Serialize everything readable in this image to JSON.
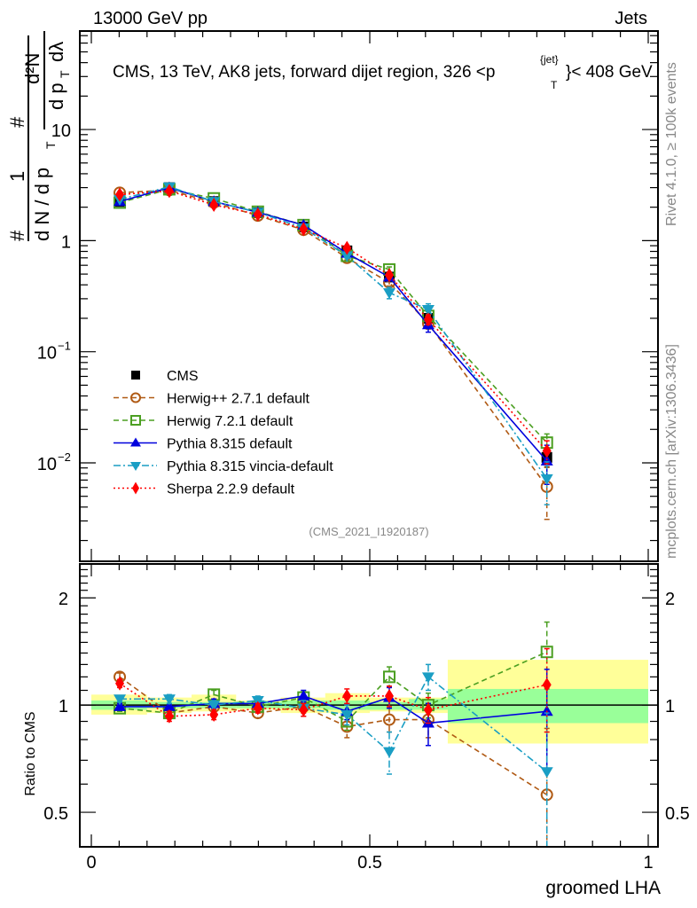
{
  "header": {
    "left_label": "13000 GeV pp",
    "right_label": "Jets"
  },
  "side_labels": {
    "rivet": "Rivet 4.1.0, ≥ 100k events",
    "mcplots": "mcplots.cern.ch [arXiv:1306.3436]"
  },
  "chart_data": [
    {
      "type": "line",
      "panel": "main",
      "title": "CMS, 13 TeV, AK8 jets, forward dijet region, 326 <p_T^{jet}< 408 GeV",
      "title_parts": {
        "prefix": "CMS, 13 TeV, AK8 jets, forward dijet region, 326 <p",
        "sub": "T",
        "sup": "{jet}",
        "suffix": "}< 408 GeV"
      },
      "ylabel": "1/(dN/dp_T) d²N/(dp_T dλ)",
      "ylabel_parts": {
        "num_top": "1",
        "den_left": "d N / d p",
        "den_sub": "T",
        "num_right": "d²N",
        "den_right": "d p",
        "den_right_sub": "T",
        "den_right_end": "dλ",
        "hash": "#"
      },
      "xlabel": "groomed LHA",
      "yscale": "log",
      "ylim": [
        0.0013,
        77
      ],
      "xlim": [
        0,
        1
      ],
      "y_tick_labels": [
        {
          "value": 10,
          "label": "10"
        },
        {
          "value": 1,
          "label": "1"
        },
        {
          "value": 0.1,
          "label": "10",
          "exp": "−1"
        },
        {
          "value": 0.01,
          "label": "10",
          "exp": "−2"
        }
      ],
      "watermark": "(CMS_2021_I1920187)",
      "legend_position": "lower-left",
      "x": [
        0.051,
        0.14,
        0.22,
        0.299,
        0.381,
        0.459,
        0.535,
        0.605,
        0.818
      ],
      "bin_edges": [
        0.0,
        0.1,
        0.18,
        0.26,
        0.34,
        0.42,
        0.5,
        0.57,
        0.64,
        1.0
      ],
      "series": [
        {
          "name": "CMS",
          "color": "#000000",
          "marker": "square",
          "line": "none",
          "values": [
            2.25,
            3.0,
            2.25,
            1.78,
            1.33,
            0.81,
            0.47,
            0.2,
            0.0112
          ],
          "errors": [
            0.08,
            0.08,
            0.06,
            0.05,
            0.05,
            0.04,
            0.03,
            0.02,
            0.002
          ]
        },
        {
          "name": "Herwig++ 2.7.1 default",
          "color": "#b05a14",
          "marker": "circle-open",
          "line": "dashed",
          "values": [
            2.7,
            2.85,
            2.2,
            1.68,
            1.25,
            0.7,
            0.42,
            0.18,
            0.0061
          ],
          "errors": [
            0.05,
            0.05,
            0.05,
            0.04,
            0.03,
            0.03,
            0.03,
            0.02,
            0.003
          ]
        },
        {
          "name": "Herwig 7.2.1 default",
          "color": "#4b9f21",
          "marker": "square-open",
          "line": "dashed",
          "values": [
            2.2,
            2.9,
            2.4,
            1.82,
            1.38,
            0.73,
            0.55,
            0.21,
            0.0152
          ],
          "errors": [
            0.05,
            0.05,
            0.05,
            0.04,
            0.03,
            0.03,
            0.03,
            0.02,
            0.003
          ]
        },
        {
          "name": "Pythia 8.315 default",
          "color": "#0000dd",
          "marker": "triangle-up",
          "line": "solid",
          "values": [
            2.25,
            3.0,
            2.25,
            1.8,
            1.38,
            0.77,
            0.47,
            0.175,
            0.0104
          ],
          "errors": [
            0.05,
            0.05,
            0.05,
            0.04,
            0.04,
            0.03,
            0.03,
            0.025,
            0.004
          ]
        },
        {
          "name": "Pythia 8.315 vincia-default",
          "color": "#1a9ec4",
          "marker": "triangle-down",
          "line": "dashdot",
          "values": [
            2.35,
            3.05,
            2.25,
            1.8,
            1.3,
            0.73,
            0.34,
            0.24,
            0.0072
          ],
          "errors": [
            0.05,
            0.05,
            0.05,
            0.04,
            0.03,
            0.03,
            0.04,
            0.03,
            0.003
          ]
        },
        {
          "name": "Sherpa 2.2.9 default",
          "color": "#ff0000",
          "marker": "diamond",
          "line": "dotted",
          "values": [
            2.6,
            2.8,
            2.1,
            1.72,
            1.27,
            0.86,
            0.49,
            0.195,
            0.0128
          ],
          "errors": [
            0.05,
            0.05,
            0.05,
            0.04,
            0.03,
            0.03,
            0.03,
            0.02,
            0.003
          ]
        }
      ]
    },
    {
      "type": "line",
      "panel": "ratio",
      "ylabel": "Ratio to CMS",
      "xlabel": "groomed LHA",
      "yscale": "log",
      "ylim": [
        0.4,
        2.49
      ],
      "xlim": [
        0,
        1
      ],
      "y_tick_labels": [
        {
          "value": 2,
          "label": "2"
        },
        {
          "value": 1,
          "label": "1"
        },
        {
          "value": 0.5,
          "label": "0.5"
        }
      ],
      "x_tick_labels": [
        {
          "value": 0,
          "label": "0"
        },
        {
          "value": 0.5,
          "label": "0.5"
        },
        {
          "value": 1,
          "label": "1"
        }
      ],
      "x": [
        0.051,
        0.14,
        0.22,
        0.299,
        0.381,
        0.459,
        0.535,
        0.605,
        0.818
      ],
      "bin_edges": [
        0.0,
        0.1,
        0.18,
        0.26,
        0.34,
        0.42,
        0.5,
        0.57,
        0.64,
        1.0
      ],
      "bands": {
        "stat_color": "#99ff99",
        "total_color": "#ffff99",
        "stat": [
          [
            0.97,
            1.03
          ],
          [
            0.98,
            1.02
          ],
          [
            0.98,
            1.02
          ],
          [
            0.98,
            1.02
          ],
          [
            0.98,
            1.03
          ],
          [
            0.97,
            1.03
          ],
          [
            0.97,
            1.02
          ],
          [
            0.97,
            1.04
          ],
          [
            0.89,
            1.11
          ]
        ],
        "total": [
          [
            0.94,
            1.07
          ],
          [
            0.95,
            1.05
          ],
          [
            0.96,
            1.07
          ],
          [
            0.97,
            1.03
          ],
          [
            0.95,
            1.05
          ],
          [
            0.95,
            1.08
          ],
          [
            0.96,
            1.05
          ],
          [
            0.95,
            1.05
          ],
          [
            0.78,
            1.34
          ]
        ]
      },
      "series": [
        {
          "name": "Herwig++ 2.7.1 default",
          "color": "#b05a14",
          "marker": "circle-open",
          "line": "dashed",
          "values": [
            1.2,
            0.95,
            0.99,
            0.95,
            0.99,
            0.87,
            0.91,
            0.91,
            0.56
          ],
          "errors": [
            0.03,
            0.03,
            0.03,
            0.03,
            0.04,
            0.06,
            0.07,
            0.1,
            0.3
          ]
        },
        {
          "name": "Herwig 7.2.1 default",
          "color": "#4b9f21",
          "marker": "square-open",
          "line": "dashed",
          "values": [
            0.98,
            0.95,
            1.07,
            0.99,
            1.05,
            0.9,
            1.2,
            1.0,
            1.41
          ],
          "errors": [
            0.02,
            0.03,
            0.03,
            0.03,
            0.04,
            0.05,
            0.08,
            0.08,
            0.3
          ]
        },
        {
          "name": "Pythia 8.315 default",
          "color": "#0000dd",
          "marker": "triangle-up",
          "line": "solid",
          "values": [
            0.99,
            0.99,
            1.01,
            1.01,
            1.06,
            0.96,
            1.05,
            0.89,
            0.96
          ],
          "errors": [
            0.02,
            0.02,
            0.03,
            0.03,
            0.04,
            0.05,
            0.07,
            0.12,
            0.3
          ]
        },
        {
          "name": "Pythia 8.315 vincia-default",
          "color": "#1a9ec4",
          "marker": "triangle-down",
          "line": "dashdot",
          "values": [
            1.04,
            1.04,
            1.0,
            1.03,
            0.98,
            0.94,
            0.74,
            1.2,
            0.65
          ],
          "errors": [
            0.02,
            0.03,
            0.03,
            0.03,
            0.05,
            0.06,
            0.1,
            0.1,
            0.3
          ]
        },
        {
          "name": "Sherpa 2.2.9 default",
          "color": "#ff0000",
          "marker": "diamond",
          "line": "dotted",
          "values": [
            1.15,
            0.93,
            0.94,
            0.98,
            0.97,
            1.06,
            1.06,
            0.97,
            1.14
          ],
          "errors": [
            0.03,
            0.03,
            0.03,
            0.03,
            0.04,
            0.05,
            0.07,
            0.08,
            0.3
          ]
        }
      ]
    }
  ]
}
